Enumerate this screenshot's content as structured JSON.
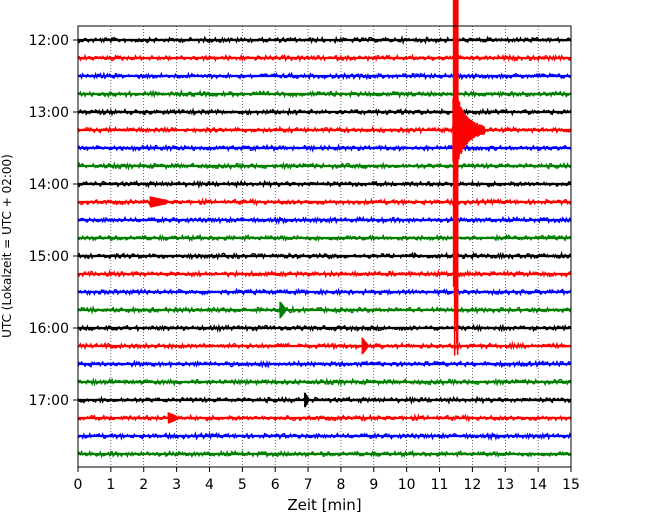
{
  "chart_data": {
    "type": "line",
    "xlabel": "Zeit  [min]",
    "ylabel": "UTC (Lokalzeit = UTC + 02:00)",
    "xlim": [
      0,
      15
    ],
    "x_ticks": [
      0,
      1,
      2,
      3,
      4,
      5,
      6,
      7,
      8,
      9,
      10,
      11,
      12,
      13,
      14,
      15
    ],
    "y_ticks": [
      "12:00",
      "13:00",
      "14:00",
      "15:00",
      "16:00",
      "17:00"
    ],
    "rows_per_hour": 4,
    "row_minutes": 15,
    "grid": true,
    "line_colors": [
      "#000000",
      "#ff0000",
      "#0000ff",
      "#008000"
    ],
    "rows": [
      {
        "time": "12:00",
        "color": "#000000",
        "events": []
      },
      {
        "time": "12:15",
        "color": "#ff0000",
        "events": []
      },
      {
        "time": "12:30",
        "color": "#0000ff",
        "events": []
      },
      {
        "time": "12:45",
        "color": "#008000",
        "events": []
      },
      {
        "time": "13:00",
        "color": "#000000",
        "events": []
      },
      {
        "time": "13:15",
        "color": "#ff0000",
        "events": [
          {
            "x_min": 11.45,
            "type": "earthquake",
            "amplitude_rows": 3.0,
            "coda_end_min": 12.3
          }
        ]
      },
      {
        "time": "13:30",
        "color": "#0000ff",
        "events": []
      },
      {
        "time": "13:45",
        "color": "#008000",
        "events": []
      },
      {
        "time": "14:00",
        "color": "#000000",
        "events": []
      },
      {
        "time": "14:15",
        "color": "#ff0000",
        "events": [
          {
            "x_min": 2.2,
            "type": "burst",
            "amplitude_rows": 0.2,
            "coda_end_min": 2.7
          }
        ]
      },
      {
        "time": "14:30",
        "color": "#0000ff",
        "events": []
      },
      {
        "time": "14:45",
        "color": "#008000",
        "events": []
      },
      {
        "time": "15:00",
        "color": "#000000",
        "events": []
      },
      {
        "time": "15:15",
        "color": "#ff0000",
        "events": []
      },
      {
        "time": "15:30",
        "color": "#0000ff",
        "events": []
      },
      {
        "time": "15:45",
        "color": "#008000",
        "events": [
          {
            "x_min": 6.15,
            "type": "spike",
            "amplitude_rows": 0.35,
            "coda_end_min": 6.3
          }
        ]
      },
      {
        "time": "16:00",
        "color": "#000000",
        "events": []
      },
      {
        "time": "16:15",
        "color": "#ff0000",
        "events": [
          {
            "x_min": 8.65,
            "type": "spike",
            "amplitude_rows": 0.35,
            "coda_end_min": 8.8
          }
        ]
      },
      {
        "time": "16:30",
        "color": "#0000ff",
        "events": []
      },
      {
        "time": "16:45",
        "color": "#008000",
        "events": []
      },
      {
        "time": "17:00",
        "color": "#000000",
        "events": [
          {
            "x_min": 6.9,
            "type": "spike",
            "amplitude_rows": 0.3,
            "coda_end_min": 7.0
          }
        ]
      },
      {
        "time": "17:15",
        "color": "#ff0000",
        "events": [
          {
            "x_min": 2.75,
            "type": "burst",
            "amplitude_rows": 0.2,
            "coda_end_min": 3.0
          }
        ]
      },
      {
        "time": "17:30",
        "color": "#0000ff",
        "events": []
      },
      {
        "time": "17:45",
        "color": "#008000",
        "events": []
      }
    ]
  }
}
